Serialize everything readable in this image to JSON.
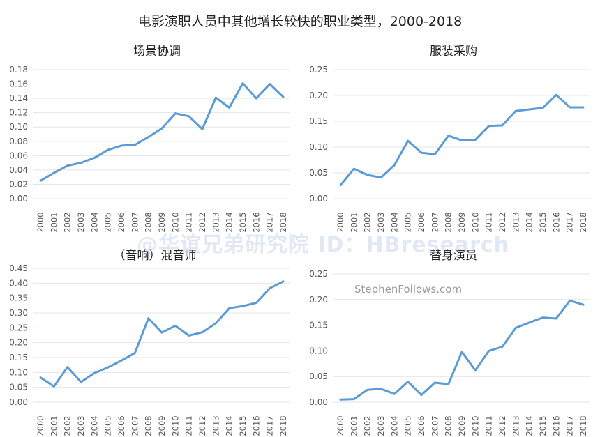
{
  "title": "电影演职人员中其他增长较快的职业类型，2000-2018",
  "watermark": "@华谊兄弟研究院 ID：HBresearch",
  "source": "StephenFollows.com",
  "colors": {
    "line": "#5b9bd5",
    "grid": "#e4e4e4",
    "text": "#555555"
  },
  "chart_data": [
    {
      "type": "line",
      "title": "场景协调",
      "xlabel": "",
      "ylabel": "",
      "x": [
        "2000",
        "2001",
        "2002",
        "2003",
        "2004",
        "2005",
        "2006",
        "2007",
        "2008",
        "2009",
        "2010",
        "2011",
        "2012",
        "2013",
        "2014",
        "2015",
        "2016",
        "2017",
        "2018"
      ],
      "yticks": [
        "0.00",
        "0.02",
        "0.04",
        "0.06",
        "0.08",
        "0.10",
        "0.12",
        "0.14",
        "0.16",
        "0.18"
      ],
      "ylim": [
        0,
        0.18
      ],
      "grid": true,
      "series": [
        {
          "values": [
            0.025,
            0.036,
            0.046,
            0.05,
            0.057,
            0.068,
            0.074,
            0.075,
            0.086,
            0.098,
            0.119,
            0.115,
            0.097,
            0.141,
            0.127,
            0.161,
            0.14,
            0.16,
            0.142
          ]
        }
      ]
    },
    {
      "type": "line",
      "title": "服装采购",
      "xlabel": "",
      "ylabel": "",
      "x": [
        "2000",
        "2001",
        "2002",
        "2003",
        "2004",
        "2005",
        "2006",
        "2007",
        "2008",
        "2009",
        "2010",
        "2011",
        "2012",
        "2013",
        "2014",
        "2015",
        "2016",
        "2017",
        "2018"
      ],
      "yticks": [
        "0.00",
        "0.05",
        "0.10",
        "0.15",
        "0.20",
        "0.25"
      ],
      "ylim": [
        0,
        0.25
      ],
      "grid": true,
      "series": [
        {
          "values": [
            0.026,
            0.058,
            0.046,
            0.041,
            0.065,
            0.112,
            0.089,
            0.086,
            0.122,
            0.113,
            0.114,
            0.141,
            0.142,
            0.17,
            0.173,
            0.176,
            0.201,
            0.177,
            0.177
          ]
        }
      ]
    },
    {
      "type": "line",
      "title": "（音响）混音师",
      "xlabel": "",
      "ylabel": "",
      "x": [
        "2000",
        "2001",
        "2002",
        "2003",
        "2004",
        "2005",
        "2006",
        "2007",
        "2008",
        "2009",
        "2010",
        "2011",
        "2012",
        "2013",
        "2014",
        "2015",
        "2016",
        "2017",
        "2018"
      ],
      "yticks": [
        "0.00",
        "0.05",
        "0.10",
        "0.15",
        "0.20",
        "0.25",
        "0.30",
        "0.35",
        "0.40",
        "0.45"
      ],
      "ylim": [
        0,
        0.45
      ],
      "grid": true,
      "series": [
        {
          "values": [
            0.083,
            0.053,
            0.118,
            0.068,
            0.098,
            0.117,
            0.14,
            0.165,
            0.282,
            0.234,
            0.257,
            0.224,
            0.235,
            0.265,
            0.316,
            0.323,
            0.334,
            0.383,
            0.406
          ]
        }
      ]
    },
    {
      "type": "line",
      "title": "替身演员",
      "xlabel": "",
      "ylabel": "",
      "x": [
        "2000",
        "2001",
        "2002",
        "2003",
        "2004",
        "2005",
        "2006",
        "2007",
        "2008",
        "2009",
        "2010",
        "2011",
        "2012",
        "2013",
        "2014",
        "2015",
        "2016",
        "2017",
        "2018"
      ],
      "yticks": [
        "0.00",
        "0.05",
        "0.10",
        "0.15",
        "0.20",
        "0.25"
      ],
      "ylim": [
        0,
        0.25
      ],
      "grid": true,
      "series": [
        {
          "values": [
            0.005,
            0.006,
            0.024,
            0.026,
            0.016,
            0.04,
            0.014,
            0.038,
            0.035,
            0.098,
            0.062,
            0.1,
            0.108,
            0.145,
            0.155,
            0.165,
            0.163,
            0.198,
            0.19
          ]
        }
      ]
    }
  ]
}
